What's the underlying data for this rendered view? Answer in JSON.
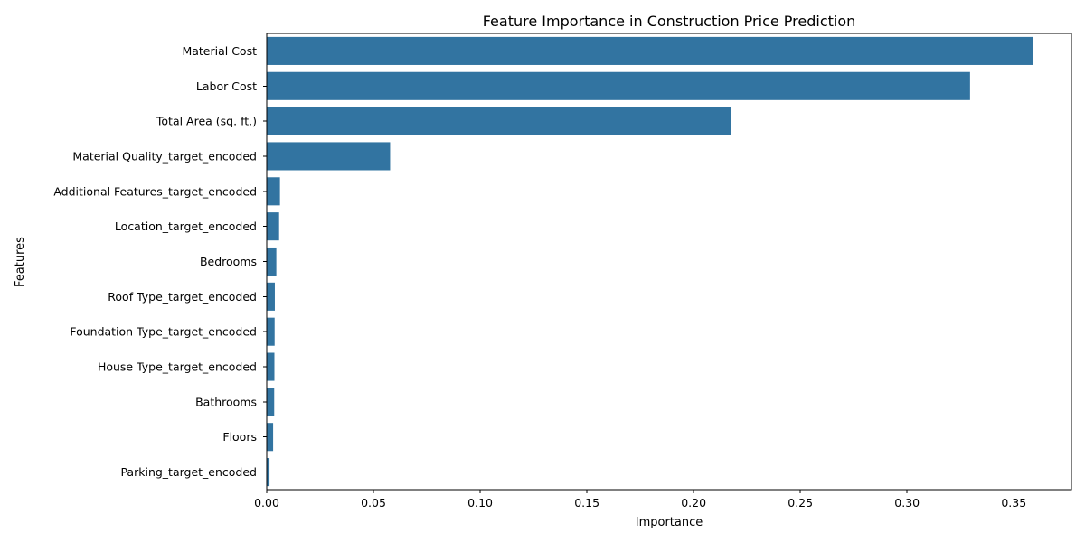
{
  "chart_data": {
    "type": "bar",
    "orientation": "horizontal",
    "title": "Feature Importance in Construction Price Prediction",
    "xlabel": "Importance",
    "ylabel": "Features",
    "categories": [
      "Material Cost",
      "Labor Cost",
      "Total Area (sq. ft.)",
      "Material Quality_target_encoded",
      "Additional Features_target_encoded",
      "Location_target_encoded",
      "Bedrooms",
      "Roof Type_target_encoded",
      "Foundation Type_target_encoded",
      "House Type_target_encoded",
      "Bathrooms",
      "Floors",
      "Parking_target_encoded"
    ],
    "values": [
      0.359,
      0.3295,
      0.2175,
      0.0578,
      0.0062,
      0.0058,
      0.0045,
      0.0038,
      0.0037,
      0.0036,
      0.0035,
      0.003,
      0.0013
    ],
    "xlim": [
      0,
      0.377
    ],
    "xticks": [
      0,
      0.05,
      0.1,
      0.15,
      0.2,
      0.25,
      0.3,
      0.35
    ],
    "xtick_labels": [
      "0.00",
      "0.05",
      "0.10",
      "0.15",
      "0.20",
      "0.25",
      "0.30",
      "0.35"
    ],
    "grid": false,
    "color": "#3274a1"
  }
}
